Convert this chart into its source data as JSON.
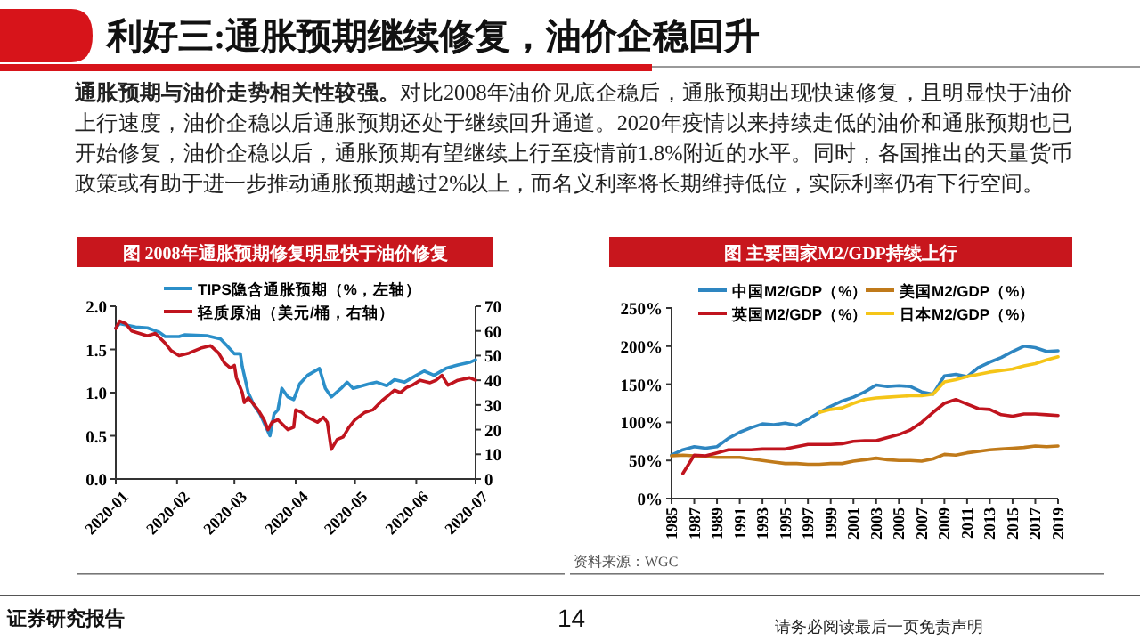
{
  "chart_data": [
    {
      "type": "other",
      "title": "利好三:通胀预期继续修复，油价企稳回升",
      "annotations": [
        "通胀预期与油价走势相关性较强。",
        "对比2008年油价见底企稳后，通胀预期出现快速修复，且明显快于油价上行速度，油价企稳以后通胀预期还处于继续回升通道。2020年疫情以来持续走低的油价和通胀预期也已开始修复，油价企稳以后，通胀预期有望继续上行至疫情前1.8%附近的水平。同时，各国推出的天量货币政策或有助于进一步推动通胀预期越过2%以上，而名义利率将长期维持低位，实际利率仍有下行空间。",
        "证券研究报告",
        "14",
        "请务必阅读最后一页免责声明"
      ]
    },
    {
      "type": "line",
      "title": "图 2008年通胀预期修复明显快于油价修复",
      "legend": "top",
      "xlim": [
        "2020-01-01",
        "2020-07-01"
      ],
      "xticks": [
        "2020-01",
        "2020-02",
        "2020-03",
        "2020-04",
        "2020-05",
        "2020-06",
        "2020-07"
      ],
      "ylim": [
        0,
        2
      ],
      "yticks": [
        {
          "value": 0,
          "label": "0.0"
        },
        {
          "value": 0.5,
          "label": "0.5"
        },
        {
          "value": 1,
          "label": "1.0"
        },
        {
          "value": 1.5,
          "label": "1.5"
        },
        {
          "value": 2,
          "label": "2.0"
        }
      ],
      "y2lim": [
        0,
        70
      ],
      "y2ticks": [
        0,
        10,
        20,
        30,
        40,
        50,
        60,
        70
      ],
      "series": [
        {
          "name": "TIPS隐含通胀预期（%，左轴）",
          "color": "#2b8fc9",
          "x": [
            "2020-01-01",
            "2020-01-03",
            "2020-01-11",
            "2020-01-17",
            "2020-01-23",
            "2020-01-26",
            "2020-02-02",
            "2020-02-05",
            "2020-02-16",
            "2020-02-23",
            "2020-02-26",
            "2020-03-01",
            "2020-03-04",
            "2020-03-05",
            "2020-03-08",
            "2020-03-11",
            "2020-03-14",
            "2020-03-19",
            "2020-03-21",
            "2020-03-23",
            "2020-03-25",
            "2020-03-28",
            "2020-03-31",
            "2020-04-03",
            "2020-04-07",
            "2020-04-13",
            "2020-04-16",
            "2020-04-19",
            "2020-04-24",
            "2020-04-27",
            "2020-04-30",
            "2020-05-08",
            "2020-05-12",
            "2020-05-17",
            "2020-05-21",
            "2020-05-26",
            "2020-06-01",
            "2020-06-05",
            "2020-06-10",
            "2020-06-16",
            "2020-06-22",
            "2020-06-28",
            "2020-07-01"
          ],
          "values": [
            1.75,
            1.8,
            1.76,
            1.75,
            1.7,
            1.65,
            1.65,
            1.67,
            1.66,
            1.62,
            1.55,
            1.45,
            1.45,
            1.3,
            1.0,
            0.85,
            0.75,
            0.5,
            0.75,
            0.8,
            1.05,
            0.95,
            0.92,
            1.1,
            1.2,
            1.28,
            1.05,
            0.95,
            1.05,
            1.12,
            1.05,
            1.1,
            1.12,
            1.08,
            1.15,
            1.12,
            1.2,
            1.25,
            1.2,
            1.28,
            1.32,
            1.35,
            1.38
          ]
        },
        {
          "name": "轻质原油（美元/桶，右轴）",
          "color": "#c0141e",
          "axis": "y2",
          "x": [
            "2020-01-01",
            "2020-01-03",
            "2020-01-06",
            "2020-01-09",
            "2020-01-17",
            "2020-01-21",
            "2020-01-26",
            "2020-01-29",
            "2020-02-02",
            "2020-02-07",
            "2020-02-13",
            "2020-02-18",
            "2020-02-22",
            "2020-02-25",
            "2020-02-28",
            "2020-03-01",
            "2020-03-02",
            "2020-03-05",
            "2020-03-06",
            "2020-03-08",
            "2020-03-13",
            "2020-03-16",
            "2020-03-18",
            "2020-03-20",
            "2020-03-23",
            "2020-03-28",
            "2020-03-31",
            "2020-04-01",
            "2020-04-04",
            "2020-04-07",
            "2020-04-12",
            "2020-04-15",
            "2020-04-17",
            "2020-04-19",
            "2020-04-22",
            "2020-04-25",
            "2020-04-28",
            "2020-05-01",
            "2020-05-06",
            "2020-05-10",
            "2020-05-15",
            "2020-05-18",
            "2020-05-21",
            "2020-05-24",
            "2020-05-27",
            "2020-05-30",
            "2020-06-03",
            "2020-06-08",
            "2020-06-11",
            "2020-06-14",
            "2020-06-17",
            "2020-06-22",
            "2020-06-28",
            "2020-07-01"
          ],
          "values": [
            61,
            64,
            63,
            60,
            58,
            59,
            55,
            52,
            50,
            51,
            53,
            54,
            51,
            47,
            45,
            46,
            41,
            35,
            31,
            33,
            28,
            24,
            20,
            23,
            24,
            20,
            21,
            28,
            27,
            25,
            23,
            25,
            23,
            12,
            16,
            17,
            21,
            24,
            27,
            28,
            32,
            34,
            36,
            35,
            37,
            38,
            40,
            39,
            40,
            42,
            38,
            40,
            41,
            40
          ]
        }
      ]
    },
    {
      "type": "line",
      "title": "图 主要国家M2/GDP持续上行",
      "legend": "top",
      "annotations": [
        "资料来源：WGC"
      ],
      "xlim": [
        1985,
        2019
      ],
      "xticks": [
        1985,
        1987,
        1989,
        1991,
        1993,
        1995,
        1997,
        1999,
        2001,
        2003,
        2005,
        2007,
        2009,
        2011,
        2013,
        2015,
        2017,
        2019
      ],
      "x": [
        1985,
        1986,
        1987,
        1988,
        1989,
        1990,
        1991,
        1992,
        1993,
        1994,
        1995,
        1996,
        1997,
        1998,
        1999,
        2000,
        2001,
        2002,
        2003,
        2004,
        2005,
        2006,
        2007,
        2008,
        2009,
        2010,
        2011,
        2012,
        2013,
        2014,
        2015,
        2016,
        2017,
        2018,
        2019
      ],
      "ylim": [
        0,
        250
      ],
      "yticks": [
        {
          "value": 0,
          "label": "0%"
        },
        {
          "value": 50,
          "label": "50%"
        },
        {
          "value": 100,
          "label": "100%"
        },
        {
          "value": 150,
          "label": "150%"
        },
        {
          "value": 200,
          "label": "200%"
        },
        {
          "value": 250,
          "label": "250%"
        }
      ],
      "series": [
        {
          "name": "中国M2/GDP（%）",
          "color": "#2e86c1",
          "values": [
            57,
            64,
            68,
            66,
            68,
            79,
            87,
            93,
            98,
            97,
            99,
            96,
            104,
            113,
            121,
            128,
            133,
            140,
            149,
            147,
            148,
            147,
            140,
            137,
            161,
            163,
            160,
            172,
            179,
            185,
            193,
            200,
            198,
            193,
            194
          ]
        },
        {
          "name": "美国M2/GDP（%）",
          "color": "#c07a1a",
          "values": [
            56,
            57,
            56,
            55,
            54,
            54,
            54,
            52,
            50,
            48,
            46,
            46,
            45,
            45,
            46,
            46,
            49,
            51,
            53,
            51,
            50,
            50,
            49,
            52,
            58,
            57,
            60,
            62,
            64,
            65,
            66,
            67,
            69,
            68,
            69
          ]
        },
        {
          "name": "英国M2/GDP（%）",
          "color": "#c0141e",
          "values": [
            null,
            33,
            57,
            56,
            60,
            64,
            64,
            64,
            65,
            65,
            65,
            68,
            71,
            71,
            71,
            72,
            75,
            76,
            76,
            80,
            84,
            90,
            100,
            113,
            125,
            130,
            124,
            118,
            117,
            110,
            108,
            111,
            111,
            110,
            109
          ]
        },
        {
          "name": "日本M2/GDP（%）",
          "color": "#f5c518",
          "values": [
            null,
            null,
            null,
            null,
            null,
            null,
            null,
            null,
            null,
            null,
            null,
            null,
            null,
            113,
            117,
            119,
            125,
            130,
            132,
            133,
            134,
            135,
            135,
            137,
            153,
            156,
            160,
            163,
            166,
            168,
            170,
            174,
            177,
            182,
            186
          ]
        }
      ]
    }
  ]
}
